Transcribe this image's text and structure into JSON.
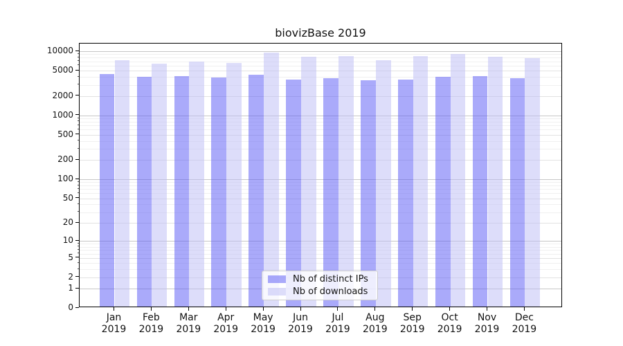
{
  "chart_data": {
    "type": "bar",
    "title": "biovizBase 2019",
    "categories": [
      "Jan 2019",
      "Feb 2019",
      "Mar 2019",
      "Apr 2019",
      "May 2019",
      "Jun 2019",
      "Jul 2019",
      "Aug 2019",
      "Sep 2019",
      "Oct 2019",
      "Nov 2019",
      "Dec 2019"
    ],
    "series": [
      {
        "name": "Nb of distinct IPs",
        "color": "rgba(85,85,245,0.5)",
        "color_hex": "#AAAAF9",
        "values": [
          4200,
          3800,
          3950,
          3700,
          4100,
          3450,
          3600,
          3400,
          3450,
          3850,
          3900,
          3650
        ]
      },
      {
        "name": "Nb of downloads",
        "color": "rgba(187,187,245,0.5)",
        "color_hex": "#DDDDFA",
        "values": [
          7000,
          6100,
          6650,
          6200,
          9000,
          7800,
          8100,
          6900,
          8000,
          8750,
          7900,
          7550
        ]
      }
    ],
    "y_ticks": [
      10000,
      5000,
      2000,
      1000,
      500,
      200,
      100,
      50,
      20,
      10,
      5,
      2,
      1,
      0
    ],
    "y_scale": "log10(1+value)",
    "ylim": [
      0,
      13000
    ],
    "grid": true,
    "legend": {
      "position": "lower center",
      "items": [
        "Nb of distinct IPs",
        "Nb of downloads"
      ]
    }
  }
}
